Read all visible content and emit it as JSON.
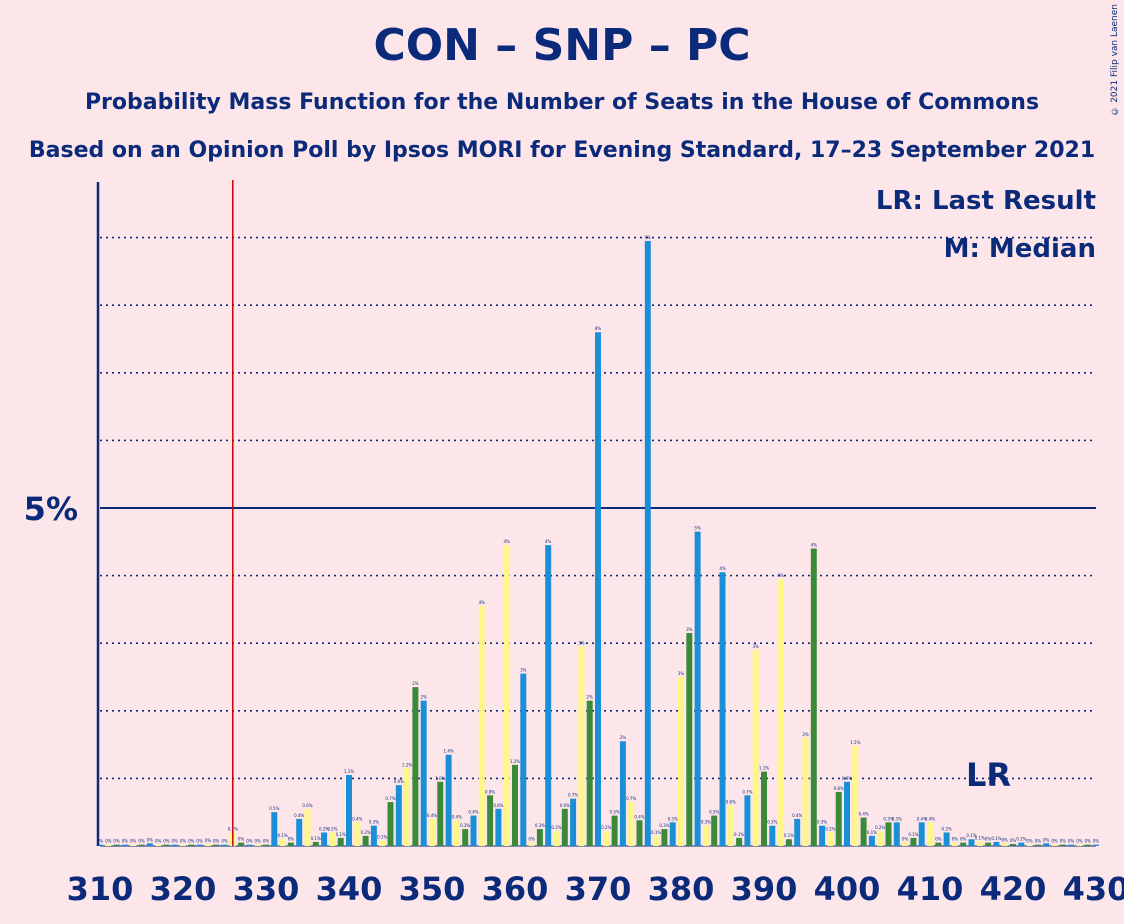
{
  "title": "CON – SNP – PC",
  "subtitle": "Probability Mass Function for the Number of Seats in the House of Commons",
  "source": "Based on an Opinion Poll by Ipsos MORI for Evening Standard, 17–23 September 2021",
  "copyright": "© 2021 Filip van Laenen",
  "legend": {
    "lr": "LR: Last Result",
    "median": "M: Median"
  },
  "lr_marker": "LR",
  "colors": {
    "green": "#3a8a3a",
    "blue": "#1a8fd6",
    "yellow": "#fff68a",
    "axis": "#0b2a7a",
    "lr_line": "#cc0000",
    "background": "#fde6ea"
  },
  "chart_data": {
    "type": "bar",
    "ylabel_tick": "5%",
    "x_ticks": [
      "310",
      "320",
      "330",
      "340",
      "350",
      "360",
      "370",
      "380",
      "390",
      "400",
      "410",
      "420",
      "430"
    ],
    "xlim": [
      310,
      430
    ],
    "ylim": [
      0,
      9.9
    ],
    "last_result": 326,
    "gridlines_pct": [
      1,
      2,
      3,
      4,
      6,
      7,
      8,
      9
    ],
    "solid_gridline_pct": 5,
    "seats": [
      310,
      311,
      312,
      313,
      314,
      315,
      316,
      317,
      318,
      319,
      320,
      321,
      322,
      323,
      324,
      325,
      326,
      327,
      328,
      329,
      330,
      331,
      332,
      333,
      334,
      335,
      336,
      337,
      338,
      339,
      340,
      341,
      342,
      343,
      344,
      345,
      346,
      347,
      348,
      349,
      350,
      351,
      352,
      353,
      354,
      355,
      356,
      357,
      358,
      359,
      360,
      361,
      362,
      363,
      364,
      365,
      366,
      367,
      368,
      369,
      370,
      371,
      372,
      373,
      374,
      375,
      376,
      377,
      378,
      379,
      380,
      381,
      382,
      383,
      384,
      385,
      386,
      387,
      388,
      389,
      390,
      391,
      392,
      393,
      394,
      395,
      396,
      397,
      398,
      399,
      400,
      401,
      402,
      403,
      404,
      405,
      406,
      407,
      408,
      409,
      410,
      411,
      412,
      413,
      414,
      415,
      416,
      417,
      418,
      419,
      420,
      421,
      422,
      423,
      424,
      425,
      426,
      427,
      428,
      429,
      430
    ],
    "values": [
      0.02,
      0.02,
      0.02,
      0.02,
      0.02,
      0.02,
      0.04,
      0.02,
      0.02,
      0.02,
      0.02,
      0.02,
      0.02,
      0.03,
      0.02,
      0.02,
      0.2,
      0.05,
      0.02,
      0.02,
      0.02,
      0.5,
      0.1,
      0.05,
      0.4,
      0.55,
      0.06,
      0.2,
      0.2,
      0.12,
      1.05,
      0.35,
      0.15,
      0.3,
      0.08,
      0.65,
      0.9,
      1.15,
      2.35,
      2.15,
      0.4,
      0.95,
      1.35,
      0.38,
      0.25,
      0.45,
      3.55,
      0.75,
      0.55,
      4.45,
      1.2,
      2.55,
      0.05,
      0.25,
      4.45,
      0.22,
      0.55,
      0.7,
      2.95,
      2.15,
      7.6,
      0.22,
      0.45,
      1.55,
      0.65,
      0.38,
      8.95,
      0.15,
      0.25,
      0.35,
      2.5,
      3.15,
      4.65,
      0.3,
      0.45,
      4.05,
      0.6,
      0.12,
      0.75,
      2.9,
      1.1,
      0.3,
      3.95,
      0.1,
      0.4,
      1.6,
      4.4,
      0.3,
      0.2,
      0.8,
      0.95,
      1.48,
      0.42,
      0.15,
      0.22,
      0.35,
      0.35,
      0.05,
      0.12,
      0.35,
      0.35,
      0.05,
      0.2,
      0.05,
      0.05,
      0.1,
      0.07,
      0.05,
      0.06,
      0.04,
      0.03,
      0.05,
      0.02,
      0.02,
      0.04,
      0.02,
      0.02,
      0.02,
      0.02,
      0.02,
      0.02
    ],
    "value_labels": [
      "0%",
      "0%",
      "0%",
      "0%",
      "0%",
      "0%",
      "0%",
      "0%",
      "0%",
      "0%",
      "0%",
      "0%",
      "0%",
      "0%",
      "0%",
      "0%",
      "0.2%",
      "0%",
      "0%",
      "0%",
      "0%",
      "0.5%",
      "0.1%",
      "0%",
      "0.4%",
      "0.6%",
      "0.1%",
      "0.2%",
      "0.2%",
      "0.1%",
      "1.1%",
      "0.4%",
      "0.2%",
      "0.3%",
      "0.1%",
      "0.7%",
      "0.9%",
      "1.2%",
      "2%",
      "2%",
      "0.4%",
      "1.0%",
      "1.4%",
      "0.4%",
      "0.3%",
      "0.4%",
      "4%",
      "0.8%",
      "0.6%",
      "4%",
      "1.2%",
      "3%",
      "0%",
      "0.3%",
      "4%",
      "0.2%",
      "0.6%",
      "0.7%",
      "3%",
      "2%",
      "8%",
      "0.2%",
      "0.5%",
      "2%",
      "0.7%",
      "0.4%",
      "9%",
      "0.1%",
      "0.3%",
      "0.3%",
      "3%",
      "3%",
      "5%",
      "0.3%",
      "0.5%",
      "4%",
      "0.6%",
      "0.1%",
      "0.7%",
      "3%",
      "1.1%",
      "0.3%",
      "4%",
      "0.1%",
      "0.4%",
      "2%",
      "4%",
      "0.3%",
      "0.2%",
      "0.8%",
      "0.9%",
      "1.5%",
      "0.4%",
      "0.1%",
      "0.2%",
      "0.3%",
      "0.3%",
      "0%",
      "0.1%",
      "0.4%",
      "0.4%",
      "0%",
      "0.2%",
      "0%",
      "0%",
      "0.1%",
      "0.1%",
      "0%",
      "0.1%",
      "0%",
      "0%",
      "0.1%",
      "0%",
      "0%",
      "0%",
      "0%",
      "0%",
      "0%",
      "0%",
      "0%",
      "0%"
    ],
    "bar_colors": [
      "green",
      "blue",
      "yellow"
    ]
  }
}
